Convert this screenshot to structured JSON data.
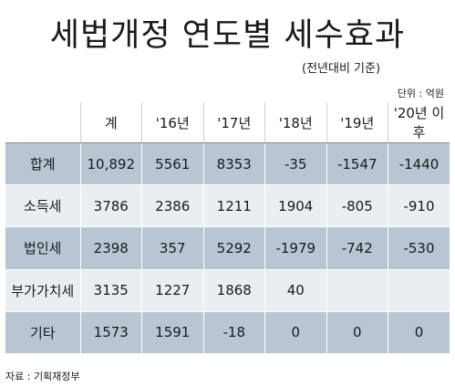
{
  "title": "세법개정 연도별 세수효과",
  "subtitle": "(전년대비 기준)",
  "unit": "단위 : 억원",
  "source": "자료 : 기획재정부",
  "chart_data": {
    "type": "table",
    "columns": [
      "",
      "계",
      "'16년",
      "'17년",
      "'18년",
      "'19년",
      "'20년 이후"
    ],
    "rows": [
      {
        "label": "합계",
        "cells": [
          "10,892",
          "5561",
          "8353",
          "-35",
          "-1547",
          "-1440"
        ]
      },
      {
        "label": "소득세",
        "cells": [
          "3786",
          "2386",
          "1211",
          "1904",
          "-805",
          "-910"
        ]
      },
      {
        "label": "법인세",
        "cells": [
          "2398",
          "357",
          "5292",
          "-1979",
          "-742",
          "-530"
        ]
      },
      {
        "label": "부가가치세",
        "cells": [
          "3135",
          "1227",
          "1868",
          "40",
          "",
          ""
        ]
      },
      {
        "label": "기타",
        "cells": [
          "1573",
          "1591",
          "-18",
          "0",
          "0",
          "0"
        ]
      }
    ]
  }
}
